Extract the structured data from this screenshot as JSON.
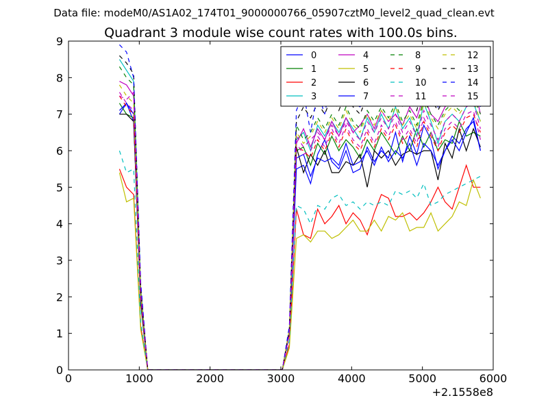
{
  "chart_data": {
    "type": "line",
    "suptitle": "Data file: modeM0/AS1A02_174T01_9000000766_05907cztM0_level2_quad_clean.evt",
    "title": "Quadrant 3 module wise count rates with 100.0s bins.",
    "xlabel": "",
    "ylabel": "",
    "x_offset_label": "+2.1558e8",
    "xlim": [
      0,
      6000
    ],
    "ylim": [
      0,
      9
    ],
    "xticks": [
      0,
      1000,
      2000,
      3000,
      4000,
      5000,
      6000
    ],
    "yticks": [
      0,
      1,
      2,
      3,
      4,
      5,
      6,
      7,
      8,
      9
    ],
    "x": [
      720,
      820,
      920,
      1020,
      1120,
      1220,
      1320,
      1420,
      1520,
      1620,
      1720,
      1820,
      1920,
      2020,
      2120,
      2220,
      2320,
      2420,
      2520,
      2620,
      2720,
      2820,
      2920,
      3020,
      3120,
      3220,
      3320,
      3420,
      3520,
      3620,
      3720,
      3820,
      3920,
      4020,
      4120,
      4220,
      4320,
      4420,
      4520,
      4620,
      4720,
      4820,
      4920,
      5020,
      5120,
      5220,
      5320,
      5420,
      5520,
      5620,
      5720,
      5820
    ],
    "legend_location": "upper right",
    "legend_columns": 4,
    "series": [
      {
        "name": "0",
        "color": "#0000ff",
        "dash": "solid",
        "values": [
          7.0,
          7.3,
          6.8,
          2.0,
          0,
          0,
          0,
          0,
          0,
          0,
          0,
          0,
          0,
          0,
          0,
          0,
          0,
          0,
          0,
          0,
          0,
          0,
          0,
          0,
          1.0,
          5.5,
          5.6,
          5.1,
          5.9,
          6.3,
          5.7,
          5.5,
          6.0,
          5.4,
          5.5,
          6.1,
          5.7,
          6.0,
          5.8,
          6.5,
          5.7,
          6.4,
          5.9,
          6.7,
          6.3,
          5.5,
          6.0,
          6.4,
          6.2,
          6.6,
          6.8,
          6.0
        ]
      },
      {
        "name": "1",
        "color": "#008000",
        "dash": "solid",
        "values": [
          7.3,
          7.0,
          6.9,
          1.8,
          0,
          0,
          0,
          0,
          0,
          0,
          0,
          0,
          0,
          0,
          0,
          0,
          0,
          0,
          0,
          0,
          0,
          0,
          0,
          0,
          1.0,
          6.0,
          6.1,
          5.6,
          6.2,
          5.9,
          6.4,
          6.0,
          6.3,
          6.1,
          5.8,
          6.3,
          6.0,
          6.5,
          6.2,
          5.9,
          6.4,
          6.0,
          6.6,
          6.1,
          6.5,
          6.0,
          6.3,
          6.2,
          6.8,
          6.4,
          6.5,
          6.4
        ]
      },
      {
        "name": "2",
        "color": "#ff0000",
        "dash": "solid",
        "values": [
          5.5,
          5.0,
          4.8,
          1.2,
          0,
          0,
          0,
          0,
          0,
          0,
          0,
          0,
          0,
          0,
          0,
          0,
          0,
          0,
          0,
          0,
          0,
          0,
          0,
          0,
          0.7,
          4.4,
          3.7,
          3.6,
          4.4,
          4.0,
          4.2,
          4.5,
          4.0,
          4.3,
          4.1,
          3.7,
          4.3,
          4.8,
          4.7,
          4.2,
          4.2,
          4.3,
          4.1,
          4.3,
          4.6,
          5.0,
          4.6,
          4.4,
          5.0,
          5.6,
          5.0,
          5.0
        ]
      },
      {
        "name": "3",
        "color": "#00bfbf",
        "dash": "solid",
        "values": [
          8.5,
          8.2,
          7.9,
          2.2,
          0,
          0,
          0,
          0,
          0,
          0,
          0,
          0,
          0,
          0,
          0,
          0,
          0,
          0,
          0,
          0,
          0,
          0,
          0,
          0,
          1.1,
          6.3,
          6.5,
          6.0,
          6.7,
          6.4,
          6.8,
          6.5,
          6.9,
          6.6,
          6.3,
          6.9,
          6.5,
          7.0,
          6.6,
          7.2,
          6.6,
          6.9,
          6.4,
          7.3,
          6.8,
          6.2,
          6.8,
          7.0,
          6.8,
          7.2,
          7.3,
          6.8
        ]
      },
      {
        "name": "4",
        "color": "#bf00bf",
        "dash": "solid",
        "values": [
          7.9,
          7.8,
          7.5,
          2.1,
          0,
          0,
          0,
          0,
          0,
          0,
          0,
          0,
          0,
          0,
          0,
          0,
          0,
          0,
          0,
          0,
          0,
          0,
          0,
          0,
          1.1,
          6.2,
          6.6,
          6.1,
          6.6,
          6.3,
          6.8,
          6.4,
          6.9,
          6.5,
          6.7,
          7.0,
          6.6,
          7.1,
          6.8,
          7.0,
          6.7,
          7.2,
          6.9,
          7.5,
          7.0,
          6.8,
          7.2,
          7.4,
          7.3,
          7.6,
          7.9,
          7.0
        ]
      },
      {
        "name": "5",
        "color": "#bfbf00",
        "dash": "solid",
        "values": [
          5.4,
          4.6,
          4.7,
          1.1,
          0,
          0,
          0,
          0,
          0,
          0,
          0,
          0,
          0,
          0,
          0,
          0,
          0,
          0,
          0,
          0,
          0,
          0,
          0,
          0,
          0.6,
          3.6,
          3.7,
          3.5,
          3.8,
          3.8,
          3.6,
          3.7,
          3.9,
          4.1,
          3.8,
          3.8,
          4.1,
          3.8,
          4.2,
          4.1,
          4.3,
          3.8,
          3.9,
          3.9,
          4.3,
          3.8,
          4.0,
          4.2,
          4.6,
          4.5,
          5.2,
          4.7
        ]
      },
      {
        "name": "6",
        "color": "#000000",
        "dash": "solid",
        "values": [
          7.0,
          7.0,
          6.8,
          1.9,
          0,
          0,
          0,
          0,
          0,
          0,
          0,
          0,
          0,
          0,
          0,
          0,
          0,
          0,
          0,
          0,
          0,
          0,
          0,
          0,
          1.0,
          6.1,
          5.4,
          5.9,
          5.6,
          6.0,
          5.4,
          5.4,
          5.7,
          5.6,
          5.9,
          5.0,
          6.0,
          5.8,
          6.0,
          5.6,
          5.9,
          6.0,
          5.9,
          6.0,
          6.0,
          5.2,
          6.2,
          5.8,
          6.6,
          6.0,
          6.6,
          6.1
        ]
      },
      {
        "name": "7",
        "color": "#0000ff",
        "dash": "solid",
        "values": [
          7.1,
          7.3,
          7.0,
          2.0,
          0,
          0,
          0,
          0,
          0,
          0,
          0,
          0,
          0,
          0,
          0,
          0,
          0,
          0,
          0,
          0,
          0,
          0,
          0,
          0,
          1.0,
          5.8,
          5.9,
          5.3,
          5.8,
          5.7,
          5.8,
          5.6,
          6.2,
          5.6,
          5.7,
          6.0,
          5.6,
          6.1,
          5.7,
          6.0,
          5.8,
          6.2,
          5.6,
          6.2,
          6.0,
          5.6,
          6.0,
          6.3,
          6.0,
          6.5,
          6.9,
          6.0
        ]
      },
      {
        "name": "8",
        "color": "#008000",
        "dash": "dashed",
        "values": [
          8.3,
          8.0,
          7.8,
          2.2,
          0,
          0,
          0,
          0,
          0,
          0,
          0,
          0,
          0,
          0,
          0,
          0,
          0,
          0,
          0,
          0,
          0,
          0,
          0,
          0,
          1.1,
          6.7,
          6.3,
          6.5,
          6.9,
          6.6,
          7.0,
          6.7,
          7.2,
          6.8,
          6.6,
          7.1,
          6.8,
          7.2,
          6.9,
          7.3,
          6.8,
          7.1,
          6.7,
          7.4,
          7.0,
          6.7,
          7.1,
          7.3,
          7.1,
          7.4,
          7.5,
          7.0
        ]
      },
      {
        "name": "9",
        "color": "#ff0000",
        "dash": "dashed",
        "values": [
          7.5,
          7.2,
          7.0,
          2.0,
          0,
          0,
          0,
          0,
          0,
          0,
          0,
          0,
          0,
          0,
          0,
          0,
          0,
          0,
          0,
          0,
          0,
          0,
          0,
          0,
          1.0,
          6.1,
          6.0,
          5.8,
          6.3,
          6.0,
          6.5,
          6.1,
          6.6,
          6.2,
          6.0,
          6.5,
          6.1,
          6.6,
          6.3,
          6.7,
          6.2,
          6.5,
          6.1,
          6.8,
          6.4,
          6.0,
          6.5,
          6.7,
          6.5,
          6.9,
          7.0,
          6.5
        ]
      },
      {
        "name": "10",
        "color": "#00bfbf",
        "dash": "dashed",
        "values": [
          6.0,
          5.4,
          5.5,
          1.3,
          0,
          0,
          0,
          0,
          0,
          0,
          0,
          0,
          0,
          0,
          0,
          0,
          0,
          0,
          0,
          0,
          0,
          0,
          0,
          0,
          0.8,
          4.5,
          4.4,
          4.0,
          4.5,
          4.4,
          4.7,
          4.8,
          4.5,
          4.6,
          4.4,
          4.6,
          4.5,
          4.6,
          4.5,
          4.9,
          4.8,
          4.9,
          4.7,
          5.1,
          4.5,
          4.6,
          4.8,
          4.9,
          5.0,
          5.1,
          5.2,
          5.3
        ]
      },
      {
        "name": "11",
        "color": "#bf00bf",
        "dash": "dashed",
        "values": [
          7.6,
          7.3,
          7.1,
          2.0,
          0,
          0,
          0,
          0,
          0,
          0,
          0,
          0,
          0,
          0,
          0,
          0,
          0,
          0,
          0,
          0,
          0,
          0,
          0,
          0,
          1.0,
          6.2,
          5.9,
          6.0,
          6.4,
          6.1,
          6.6,
          6.2,
          6.7,
          6.3,
          6.1,
          6.6,
          6.2,
          6.7,
          6.4,
          6.8,
          6.3,
          6.6,
          6.2,
          6.9,
          6.5,
          6.1,
          6.6,
          6.8,
          6.6,
          7.0,
          7.1,
          6.3
        ]
      },
      {
        "name": "12",
        "color": "#bfbf00",
        "dash": "dashed",
        "values": [
          7.8,
          7.5,
          7.3,
          2.1,
          0,
          0,
          0,
          0,
          0,
          0,
          0,
          0,
          0,
          0,
          0,
          0,
          0,
          0,
          0,
          0,
          0,
          0,
          0,
          0,
          1.1,
          6.5,
          6.2,
          6.4,
          6.8,
          6.5,
          6.9,
          6.6,
          7.1,
          6.7,
          6.5,
          7.0,
          6.7,
          7.1,
          6.8,
          7.2,
          6.7,
          7.0,
          6.6,
          7.3,
          6.9,
          6.6,
          7.0,
          7.2,
          7.0,
          7.3,
          7.4,
          6.8
        ]
      },
      {
        "name": "13",
        "color": "#000000",
        "dash": "dashed",
        "values": [
          8.6,
          8.4,
          8.1,
          2.3,
          0,
          0,
          0,
          0,
          0,
          0,
          0,
          0,
          0,
          0,
          0,
          0,
          0,
          0,
          0,
          0,
          0,
          0,
          0,
          0,
          1.1,
          6.8,
          7.2,
          6.9,
          7.3,
          7.0,
          7.5,
          7.1,
          7.6,
          7.2,
          7.0,
          7.5,
          7.2,
          7.6,
          7.3,
          7.7,
          7.2,
          7.5,
          7.1,
          7.8,
          7.4,
          7.1,
          7.5,
          7.7,
          7.5,
          7.8,
          7.9,
          7.3
        ]
      },
      {
        "name": "14",
        "color": "#0000ff",
        "dash": "dashed",
        "values": [
          8.9,
          8.7,
          8.0,
          2.4,
          0,
          0,
          0,
          0,
          0,
          0,
          0,
          0,
          0,
          0,
          0,
          0,
          0,
          0,
          0,
          0,
          0,
          0,
          0,
          0,
          1.2,
          7.1,
          7.6,
          6.5,
          7.6,
          7.0,
          8.1,
          7.3,
          8.0,
          7.3,
          7.2,
          7.5,
          7.3,
          7.9,
          7.5,
          7.9,
          7.4,
          7.8,
          7.2,
          8.1,
          7.6,
          7.2,
          8.3,
          7.8,
          7.6,
          8.0,
          7.9,
          7.2
        ]
      },
      {
        "name": "15",
        "color": "#bf00bf",
        "dash": "dashed",
        "values": [
          7.5,
          7.4,
          7.6,
          2.1,
          0,
          0,
          0,
          0,
          0,
          0,
          0,
          0,
          0,
          0,
          0,
          0,
          0,
          0,
          0,
          0,
          0,
          0,
          0,
          0,
          1.0,
          6.4,
          6.1,
          6.3,
          6.5,
          6.3,
          6.7,
          6.4,
          6.8,
          6.5,
          6.3,
          6.8,
          6.5,
          6.9,
          6.6,
          7.0,
          6.5,
          6.8,
          6.4,
          7.1,
          6.7,
          6.3,
          6.8,
          7.0,
          6.8,
          7.2,
          7.3,
          6.6
        ]
      }
    ]
  }
}
